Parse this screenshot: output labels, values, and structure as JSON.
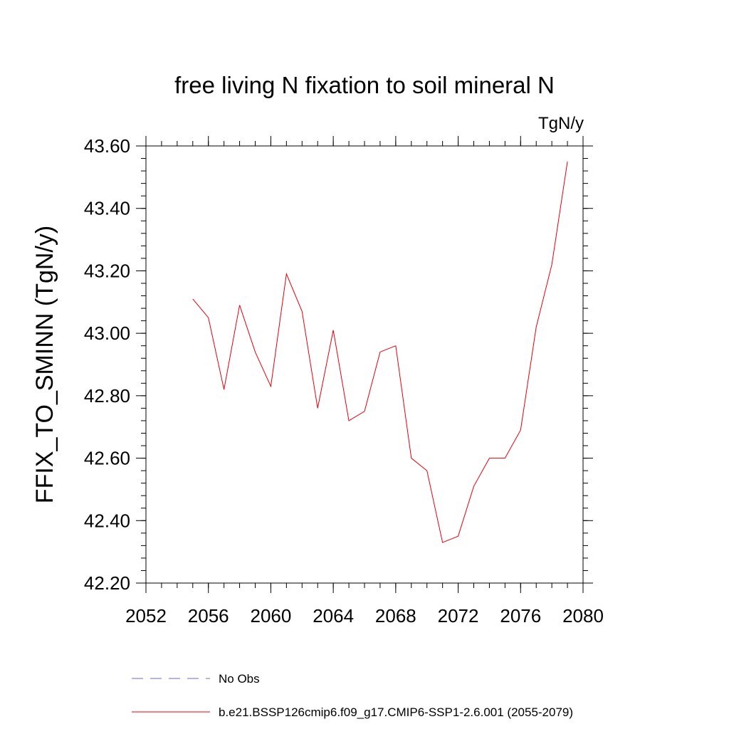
{
  "chart_data": {
    "type": "line",
    "title": "free living N fixation to soil mineral N",
    "units_label": "TgN/y",
    "ylabel": "FFIX_TO_SMINN  (TgN/y)",
    "xlabel": "",
    "xlim": [
      2052,
      2080
    ],
    "ylim": [
      42.2,
      43.6
    ],
    "xticks": [
      2052,
      2056,
      2060,
      2064,
      2068,
      2072,
      2076,
      2080
    ],
    "yticks": [
      42.2,
      42.4,
      42.6,
      42.8,
      43.0,
      43.2,
      43.4,
      43.6
    ],
    "xtick_labels": [
      "2052",
      "2056",
      "2060",
      "2064",
      "2068",
      "2072",
      "2076",
      "2080"
    ],
    "ytick_labels": [
      "42.20",
      "42.40",
      "42.60",
      "42.80",
      "43.00",
      "43.20",
      "43.40",
      "43.60"
    ],
    "series": [
      {
        "name": "b.e21.BSSP126cmip6.f09_g17.CMIP6-SSP1-2.6.001 (2055-2079)",
        "color": "#e8000b",
        "style": "solid",
        "x": [
          2055,
          2056,
          2057,
          2058,
          2059,
          2060,
          2061,
          2062,
          2063,
          2064,
          2065,
          2066,
          2067,
          2068,
          2069,
          2070,
          2071,
          2072,
          2073,
          2074,
          2075,
          2076,
          2077,
          2078,
          2079
        ],
        "values": [
          43.11,
          43.05,
          42.82,
          43.09,
          42.94,
          42.83,
          43.19,
          43.07,
          42.76,
          43.01,
          42.72,
          42.75,
          42.94,
          42.96,
          42.6,
          42.56,
          42.33,
          42.35,
          42.51,
          42.6,
          42.6,
          42.69,
          43.02,
          43.22,
          43.55
        ]
      }
    ],
    "legend": [
      {
        "label": "No Obs",
        "color": "#6b6bc8",
        "style": "dashed"
      },
      {
        "label": "b.e21.BSSP126cmip6.f09_g17.CMIP6-SSP1-2.6.001 (2055-2079)",
        "color": "#e8000b",
        "style": "solid"
      }
    ]
  }
}
